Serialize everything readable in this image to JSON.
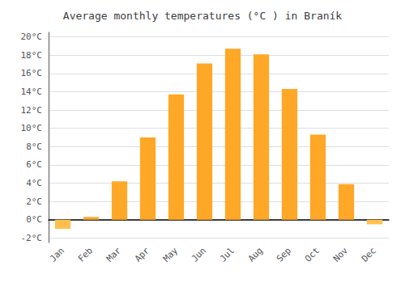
{
  "chart_data": {
    "type": "bar",
    "title": "Average monthly temperatures (°C ) in Braník",
    "categories": [
      "Jan",
      "Feb",
      "Mar",
      "Apr",
      "May",
      "Jun",
      "Jul",
      "Aug",
      "Sep",
      "Oct",
      "Nov",
      "Dec"
    ],
    "values": [
      -1.0,
      0.3,
      4.2,
      9.0,
      13.7,
      17.1,
      18.7,
      18.1,
      14.3,
      9.3,
      3.9,
      -0.5
    ],
    "colors": [
      "#FFC04D",
      "#FFA726",
      "#FFA726",
      "#FFA726",
      "#FFA726",
      "#FFA726",
      "#FFA726",
      "#FFA726",
      "#FFA726",
      "#FFA726",
      "#FFA726",
      "#FFC04D"
    ],
    "ylim": [
      -2.5,
      20.5
    ],
    "yticks": [
      {
        "value": -2,
        "label": "-2°C"
      },
      {
        "value": 0,
        "label": "0°C"
      },
      {
        "value": 2,
        "label": "2°C"
      },
      {
        "value": 4,
        "label": "4°C"
      },
      {
        "value": 6,
        "label": "6°C"
      },
      {
        "value": 8,
        "label": "8°C"
      },
      {
        "value": 10,
        "label": "10°C"
      },
      {
        "value": 12,
        "label": "12°C"
      },
      {
        "value": 14,
        "label": "14°C"
      },
      {
        "value": 16,
        "label": "16°C"
      },
      {
        "value": 18,
        "label": "18°C"
      },
      {
        "value": 20,
        "label": "20°C"
      }
    ],
    "grid": true
  }
}
